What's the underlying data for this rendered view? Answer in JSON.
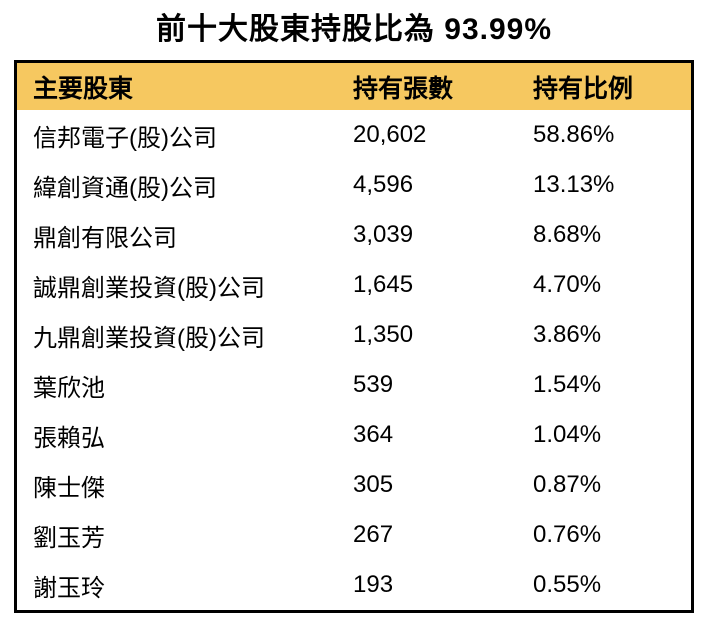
{
  "page": {
    "title": "前十大股東持股比為 93.99%"
  },
  "table": {
    "headers": [
      "主要股東",
      "持有張數",
      "持有比例"
    ],
    "rows": [
      {
        "name": "信邦電子(股)公司",
        "shares": "20,602",
        "ratio": "58.86%"
      },
      {
        "name": "緯創資通(股)公司",
        "shares": "4,596",
        "ratio": "13.13%"
      },
      {
        "name": "鼎創有限公司",
        "shares": "3,039",
        "ratio": "8.68%"
      },
      {
        "name": "誠鼎創業投資(股)公司",
        "shares": "1,645",
        "ratio": "4.70%"
      },
      {
        "name": "九鼎創業投資(股)公司",
        "shares": "1,350",
        "ratio": "3.86%"
      },
      {
        "name": "葉欣池",
        "shares": "539",
        "ratio": "1.54%"
      },
      {
        "name": "張賴弘",
        "shares": "364",
        "ratio": "1.04%"
      },
      {
        "name": "陳士傑",
        "shares": "305",
        "ratio": "0.87%"
      },
      {
        "name": "劉玉芳",
        "shares": "267",
        "ratio": "0.76%"
      },
      {
        "name": "謝玉玲",
        "shares": "193",
        "ratio": "0.55%"
      }
    ]
  },
  "colors": {
    "header_bg": "#F6C860",
    "border": "#000000",
    "text": "#000000",
    "background": "#FFFFFF"
  },
  "chart_data": {
    "type": "table",
    "title": "前十大股東持股比為 93.99%",
    "total_holding_pct": 93.99,
    "columns": [
      "主要股東",
      "持有張數",
      "持有比例"
    ],
    "rows": [
      [
        "信邦電子(股)公司",
        20602,
        58.86
      ],
      [
        "緯創資通(股)公司",
        4596,
        13.13
      ],
      [
        "鼎創有限公司",
        3039,
        8.68
      ],
      [
        "誠鼎創業投資(股)公司",
        1645,
        4.7
      ],
      [
        "九鼎創業投資(股)公司",
        1350,
        3.86
      ],
      [
        "葉欣池",
        539,
        1.54
      ],
      [
        "張賴弘",
        364,
        1.04
      ],
      [
        "陳士傑",
        305,
        0.87
      ],
      [
        "劉玉芳",
        267,
        0.76
      ],
      [
        "謝玉玲",
        193,
        0.55
      ]
    ],
    "layout_hints": {
      "header_background": "#F6C860",
      "outer_border": "3px solid black",
      "internal_gridlines": false,
      "column_alignment": [
        "left",
        "left",
        "left"
      ]
    }
  }
}
